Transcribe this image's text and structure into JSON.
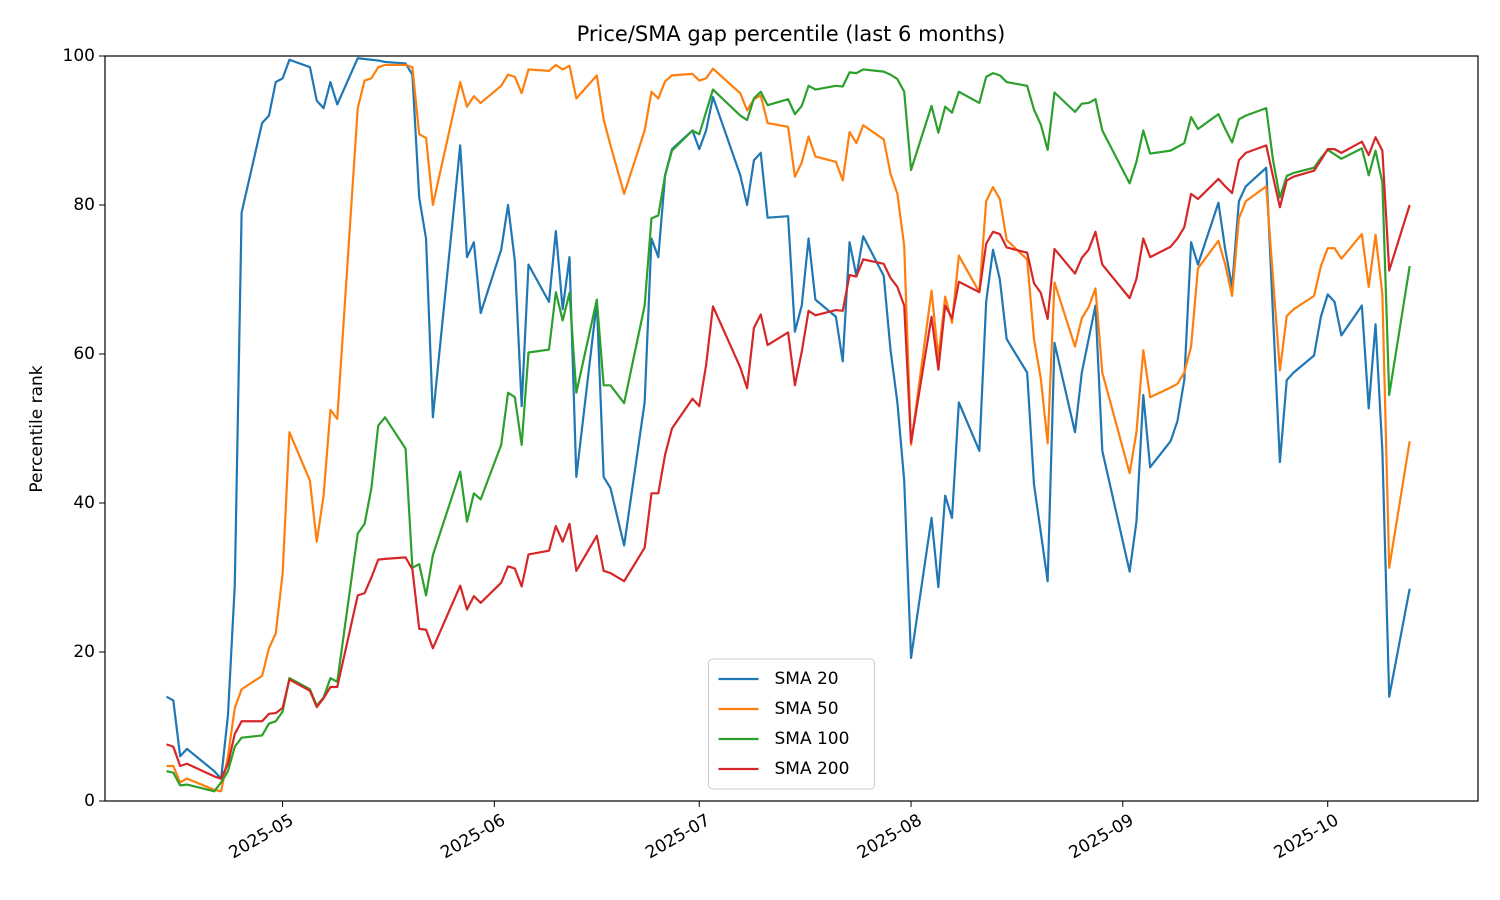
{
  "chart_data": {
    "type": "line",
    "title": "Price/SMA gap percentile (last 6 months)",
    "y_label": "Percentile rank",
    "x": [
      "2025-04-14",
      "2025-04-15",
      "2025-04-16",
      "2025-04-17",
      "2025-04-21",
      "2025-04-22",
      "2025-04-23",
      "2025-04-24",
      "2025-04-25",
      "2025-04-28",
      "2025-04-29",
      "2025-04-30",
      "2025-05-01",
      "2025-05-02",
      "2025-05-05",
      "2025-05-06",
      "2025-05-07",
      "2025-05-08",
      "2025-05-09",
      "2025-05-12",
      "2025-05-13",
      "2025-05-14",
      "2025-05-15",
      "2025-05-16",
      "2025-05-19",
      "2025-05-20",
      "2025-05-21",
      "2025-05-22",
      "2025-05-23",
      "2025-05-27",
      "2025-05-28",
      "2025-05-29",
      "2025-05-30",
      "2025-06-02",
      "2025-06-03",
      "2025-06-04",
      "2025-06-05",
      "2025-06-06",
      "2025-06-09",
      "2025-06-10",
      "2025-06-11",
      "2025-06-12",
      "2025-06-13",
      "2025-06-16",
      "2025-06-17",
      "2025-06-18",
      "2025-06-20",
      "2025-06-23",
      "2025-06-24",
      "2025-06-25",
      "2025-06-26",
      "2025-06-27",
      "2025-06-30",
      "2025-07-01",
      "2025-07-02",
      "2025-07-03",
      "2025-07-07",
      "2025-07-08",
      "2025-07-09",
      "2025-07-10",
      "2025-07-11",
      "2025-07-14",
      "2025-07-15",
      "2025-07-16",
      "2025-07-17",
      "2025-07-18",
      "2025-07-21",
      "2025-07-22",
      "2025-07-23",
      "2025-07-24",
      "2025-07-25",
      "2025-07-28",
      "2025-07-29",
      "2025-07-30",
      "2025-07-31",
      "2025-08-01",
      "2025-08-04",
      "2025-08-05",
      "2025-08-06",
      "2025-08-07",
      "2025-08-08",
      "2025-08-11",
      "2025-08-12",
      "2025-08-13",
      "2025-08-14",
      "2025-08-15",
      "2025-08-18",
      "2025-08-19",
      "2025-08-20",
      "2025-08-21",
      "2025-08-22",
      "2025-08-25",
      "2025-08-26",
      "2025-08-27",
      "2025-08-28",
      "2025-08-29",
      "2025-09-02",
      "2025-09-03",
      "2025-09-04",
      "2025-09-05",
      "2025-09-08",
      "2025-09-09",
      "2025-09-10",
      "2025-09-11",
      "2025-09-12",
      "2025-09-15",
      "2025-09-16",
      "2025-09-17",
      "2025-09-18",
      "2025-09-19",
      "2025-09-22",
      "2025-09-23",
      "2025-09-24",
      "2025-09-25",
      "2025-09-26",
      "2025-09-29",
      "2025-09-30",
      "2025-10-01",
      "2025-10-02",
      "2025-10-03",
      "2025-10-06",
      "2025-10-07",
      "2025-10-08",
      "2025-10-09",
      "2025-10-10",
      "2025-10-13"
    ],
    "series": [
      {
        "name": "SMA 20",
        "color": "#1f77b4",
        "values": [
          14,
          13.5,
          6,
          7,
          4,
          3,
          11.5,
          29,
          79,
          91,
          92,
          96.5,
          97,
          99.5,
          98.5,
          94,
          93,
          96.5,
          93.5,
          99.7,
          99.6,
          99.5,
          99.4,
          99.2,
          99,
          97.5,
          81,
          75.5,
          51.5,
          88,
          73,
          75,
          65.5,
          74,
          80,
          72.5,
          53,
          72,
          67,
          76.5,
          66,
          73,
          43.5,
          67,
          43.5,
          42,
          34.3,
          53.5,
          75.5,
          73,
          84,
          87.5,
          90,
          87.5,
          90,
          94.5,
          84,
          80,
          86,
          87,
          78.3,
          78.5,
          63,
          66.5,
          75.5,
          67.3,
          65,
          59,
          75,
          70.5,
          75.8,
          70.5,
          60.5,
          53.5,
          43,
          19.2,
          38,
          28.7,
          41,
          38,
          53.5,
          47,
          67,
          74,
          70,
          62,
          57.5,
          42.5,
          36,
          29.5,
          61.5,
          49.5,
          57.5,
          62,
          66.5,
          47,
          30.8,
          37.5,
          54.5,
          44.8,
          48.3,
          51,
          56.5,
          75,
          72,
          80.3,
          74,
          69,
          80.5,
          82.5,
          85,
          65,
          45.5,
          56.5,
          57.5,
          59.8,
          65,
          68,
          67,
          62.5,
          66.5,
          52.7,
          64,
          47,
          14,
          28.5
        ]
      },
      {
        "name": "SMA 50",
        "color": "#ff7f0e",
        "values": [
          4.7,
          4.7,
          2.5,
          3,
          1.5,
          1.3,
          6,
          12.5,
          15,
          16.8,
          20.5,
          22.5,
          30.5,
          49.5,
          43,
          34.8,
          41,
          52.5,
          51.3,
          93,
          96.7,
          97,
          98.5,
          98.8,
          98.8,
          98.5,
          89.5,
          89,
          80,
          96.5,
          93.2,
          94.6,
          93.7,
          96,
          97.5,
          97.2,
          95,
          98.2,
          98,
          98.8,
          98.2,
          98.7,
          94.3,
          97.4,
          91.5,
          88,
          81.5,
          90,
          95.2,
          94.3,
          96.6,
          97.4,
          97.6,
          96.7,
          97,
          98.3,
          95,
          92.7,
          94.2,
          94.7,
          91,
          90.5,
          83.8,
          85.7,
          89.2,
          86.5,
          85.8,
          83.3,
          89.8,
          88.3,
          90.7,
          88.8,
          84.2,
          81.5,
          74.5,
          47.8,
          68.5,
          59.5,
          67.7,
          64.2,
          73.2,
          68.3,
          80.5,
          82.4,
          80.8,
          75.3,
          72.7,
          62,
          56.7,
          48,
          69.6,
          61,
          64.8,
          66.3,
          68.8,
          57.5,
          44,
          49.5,
          60.5,
          54.2,
          55.5,
          56,
          57.5,
          61,
          71.5,
          75.2,
          72,
          67.8,
          78.2,
          80.5,
          82.5,
          70,
          57.8,
          65.1,
          66,
          67.8,
          71.8,
          74.2,
          74.2,
          72.8,
          76.1,
          69,
          76,
          68,
          31.3,
          48.3
        ]
      },
      {
        "name": "SMA 100",
        "color": "#2ca02c",
        "values": [
          4,
          3.8,
          2.1,
          2.2,
          1.3,
          2.5,
          4,
          7.3,
          8.5,
          8.8,
          10.4,
          10.7,
          12,
          16.5,
          15,
          12.8,
          13.9,
          16.5,
          16,
          35.9,
          37.2,
          42,
          50.4,
          51.5,
          47.3,
          31.3,
          31.8,
          27.6,
          33,
          44.2,
          37.5,
          41.3,
          40.5,
          47.8,
          54.8,
          54.2,
          47.8,
          60.2,
          60.6,
          68.3,
          64.5,
          68.2,
          54.8,
          67.3,
          55.8,
          55.8,
          53.4,
          66.5,
          78.2,
          78.6,
          84,
          87.3,
          90,
          89.5,
          92.5,
          95.5,
          92,
          91.4,
          94.3,
          95.2,
          93.4,
          94.2,
          92.2,
          93.3,
          96,
          95.5,
          96,
          95.9,
          97.8,
          97.7,
          98.2,
          97.9,
          97.5,
          96.9,
          95.2,
          84.7,
          93.3,
          89.7,
          93.2,
          92.4,
          95.2,
          93.7,
          97.2,
          97.7,
          97.4,
          96.5,
          96,
          92.8,
          90.8,
          87.4,
          95.1,
          92.5,
          93.6,
          93.7,
          94.2,
          90,
          82.9,
          85.8,
          90,
          86.9,
          87.3,
          87.8,
          88.3,
          91.8,
          90.2,
          92.2,
          90.2,
          88.4,
          91.5,
          92,
          93,
          86,
          81,
          83.9,
          84.3,
          85,
          86.3,
          87.4,
          86.8,
          86.2,
          87.6,
          84,
          87.3,
          83,
          54.5,
          71.8
        ]
      },
      {
        "name": "SMA 200",
        "color": "#d62728",
        "values": [
          7.6,
          7.3,
          4.7,
          5,
          3.3,
          3,
          5,
          9,
          10.7,
          10.7,
          11.7,
          11.8,
          12.5,
          16.3,
          14.8,
          12.6,
          13.8,
          15.3,
          15.3,
          27.6,
          27.9,
          30,
          32.4,
          32.5,
          32.7,
          31.1,
          23.1,
          23,
          20.5,
          28.9,
          25.7,
          27.5,
          26.6,
          29.3,
          31.5,
          31.2,
          28.8,
          33.1,
          33.6,
          36.9,
          34.8,
          37.2,
          30.9,
          35.6,
          30.9,
          30.6,
          29.5,
          34,
          41.3,
          41.3,
          46.5,
          50,
          54,
          53,
          58.5,
          66.4,
          58.2,
          55.4,
          63.5,
          65.3,
          61.2,
          62.9,
          55.8,
          60.3,
          65.8,
          65.2,
          65.9,
          65.8,
          70.6,
          70.4,
          72.7,
          72.1,
          70.2,
          69,
          66.5,
          48.1,
          65,
          57.9,
          66.5,
          64.8,
          69.7,
          68.3,
          74.8,
          76.4,
          76.1,
          74.3,
          73.6,
          69.5,
          68.2,
          64.7,
          74.1,
          70.8,
          72.9,
          74,
          76.4,
          72,
          67.5,
          70.1,
          75.5,
          73,
          74.4,
          75.5,
          77,
          81.5,
          80.8,
          83.5,
          82.5,
          81.6,
          86,
          87,
          88,
          83.8,
          79.7,
          83.3,
          83.8,
          84.6,
          86,
          87.5,
          87.5,
          87,
          88.5,
          86.7,
          89.1,
          87.3,
          71.2,
          80
        ]
      }
    ],
    "xlim": [
      "2025-04-05",
      "2025-10-23"
    ],
    "xticks": [
      {
        "value": "2025-05-01",
        "label": "2025-05"
      },
      {
        "value": "2025-06-01",
        "label": "2025-06"
      },
      {
        "value": "2025-07-01",
        "label": "2025-07"
      },
      {
        "value": "2025-08-01",
        "label": "2025-08"
      },
      {
        "value": "2025-09-01",
        "label": "2025-09"
      },
      {
        "value": "2025-10-01",
        "label": "2025-10"
      }
    ],
    "ylim": [
      0,
      100
    ],
    "yticks": [
      0,
      20,
      40,
      60,
      80,
      100
    ],
    "grid": false,
    "legend": "lower center"
  }
}
